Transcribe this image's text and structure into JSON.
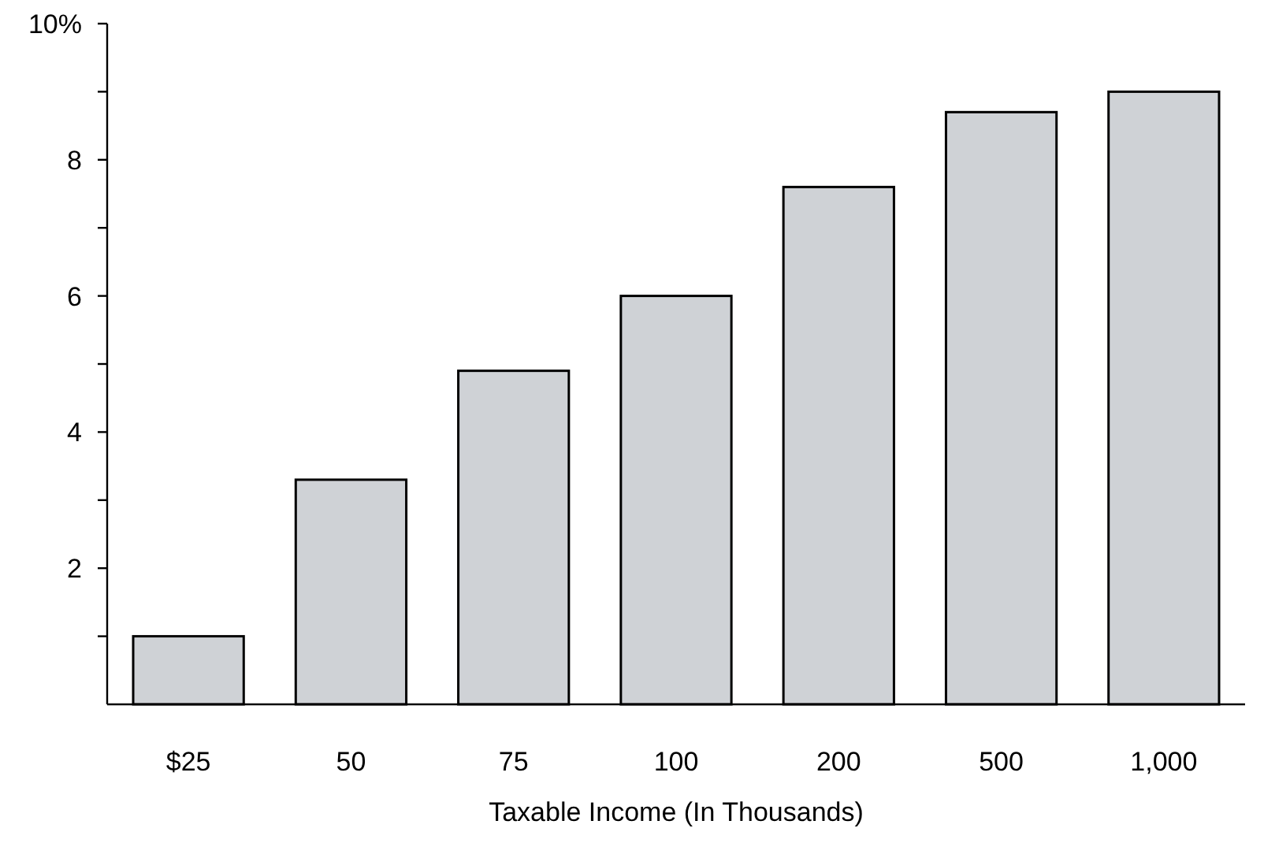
{
  "chart_data": {
    "type": "bar",
    "xlabel": "Taxable Income (In Thousands)",
    "categories": [
      "$25",
      "50",
      "75",
      "100",
      "200",
      "500",
      "1,000"
    ],
    "values": [
      1.0,
      3.3,
      4.9,
      6.0,
      7.6,
      8.7,
      9.0
    ],
    "color": "#cfd2d6",
    "ylim": [
      0,
      10
    ],
    "yticks": [
      {
        "value": 1,
        "label": null
      },
      2,
      {
        "value": 3,
        "label": null
      },
      4,
      {
        "value": 5,
        "label": null
      },
      6,
      {
        "value": 7,
        "label": null
      },
      8,
      {
        "value": 9,
        "label": null
      },
      {
        "value": 10,
        "label": "10%"
      }
    ],
    "grid": false
  }
}
